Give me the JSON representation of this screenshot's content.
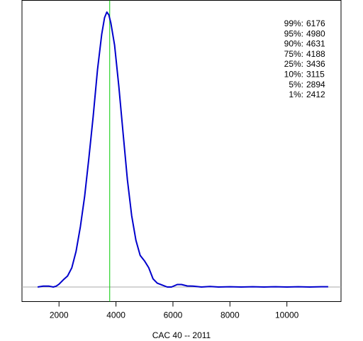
{
  "chart_data": {
    "type": "line",
    "title": "",
    "xlabel": "CAC 40 -- 2011",
    "ylabel": "",
    "xlim": [
      700,
      11900
    ],
    "ylim": [
      0,
      1
    ],
    "grid": false,
    "x_ticks": [
      2000,
      4000,
      6000,
      8000,
      10000
    ],
    "x_tick_labels": [
      "2000",
      "4000",
      "6000",
      "8000",
      "10000"
    ],
    "vertical_line_x": 3780,
    "baseline_y": 0,
    "series": [
      {
        "points": [
          [
            1250,
            0.0
          ],
          [
            1450,
            0.003
          ],
          [
            1650,
            0.003
          ],
          [
            1800,
            0.0
          ],
          [
            1900,
            0.003
          ],
          [
            2000,
            0.01
          ],
          [
            2150,
            0.026
          ],
          [
            2300,
            0.04
          ],
          [
            2450,
            0.07
          ],
          [
            2600,
            0.13
          ],
          [
            2750,
            0.22
          ],
          [
            2900,
            0.33
          ],
          [
            3050,
            0.47
          ],
          [
            3200,
            0.62
          ],
          [
            3350,
            0.79
          ],
          [
            3500,
            0.92
          ],
          [
            3600,
            0.98
          ],
          [
            3680,
            1.0
          ],
          [
            3750,
            0.99
          ],
          [
            3820,
            0.96
          ],
          [
            3950,
            0.88
          ],
          [
            4100,
            0.73
          ],
          [
            4250,
            0.56
          ],
          [
            4400,
            0.39
          ],
          [
            4550,
            0.26
          ],
          [
            4700,
            0.17
          ],
          [
            4850,
            0.115
          ],
          [
            5000,
            0.095
          ],
          [
            5150,
            0.07
          ],
          [
            5300,
            0.03
          ],
          [
            5450,
            0.014
          ],
          [
            5600,
            0.008
          ],
          [
            5800,
            0.0
          ],
          [
            5950,
            0.0
          ],
          [
            6150,
            0.009
          ],
          [
            6300,
            0.009
          ],
          [
            6500,
            0.004
          ],
          [
            6700,
            0.003
          ],
          [
            7000,
            0.0
          ],
          [
            7300,
            0.002
          ],
          [
            7600,
            0.0
          ],
          [
            8000,
            0.001
          ],
          [
            8400,
            0.0
          ],
          [
            8800,
            0.001
          ],
          [
            9200,
            0.0
          ],
          [
            9600,
            0.001
          ],
          [
            10000,
            0.0
          ],
          [
            10400,
            0.001
          ],
          [
            10800,
            0.0
          ],
          [
            11200,
            0.001
          ],
          [
            11450,
            0.001
          ]
        ],
        "color": "#0000cc"
      }
    ],
    "annotations": [
      {
        "label": "99%:",
        "value": "6176"
      },
      {
        "label": "95%:",
        "value": "4980"
      },
      {
        "label": "90%:",
        "value": "4631"
      },
      {
        "label": "75%:",
        "value": "4188"
      },
      {
        "label": "25%:",
        "value": "3436"
      },
      {
        "label": "10%:",
        "value": "3115"
      },
      {
        "label": "5%:",
        "value": "2894"
      },
      {
        "label": "1%:",
        "value": "2412"
      }
    ],
    "colors": {
      "density": "#0000cc",
      "marker_line": "#00cc00",
      "baseline": "#aaaaaa",
      "frame": "#000000"
    }
  }
}
